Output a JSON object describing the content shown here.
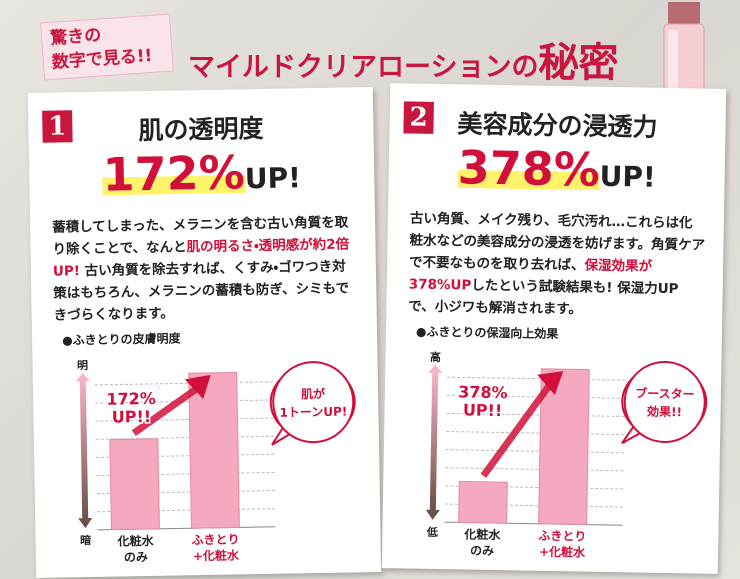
{
  "header": {
    "tag": [
      "驚きの",
      "数字で見る!!"
    ],
    "title": "マイルドクリアローションの",
    "title_emphasis": "秘密"
  },
  "panels": [
    {
      "number": "1",
      "heading": "肌の透明度",
      "big_figure": "172%",
      "big_suffix": "UP!",
      "body": [
        {
          "text": "蓄積してしまった、メラニンを含む古い角質を取り除くことで、なんと",
          "em": false
        },
        {
          "text": "肌の明るさ・透明感が約2倍UP!",
          "em": true
        },
        {
          "text": " 古い角質を除去すれば、くすみ・ゴワつき対策はもちろん、メラニンの蓄積も防ぎ、シミもできづらくなります。",
          "em": false
        }
      ],
      "chart": {
        "type": "bar",
        "title": "●ふきとりの皮膚明度",
        "axis_top": "明",
        "axis_bottom": "暗",
        "categories": [
          [
            "化粧水",
            "のみ"
          ],
          [
            "ふきとり",
            "+化粧水"
          ]
        ],
        "values": [
          100,
          172
        ],
        "color": "#f4a9be",
        "annotation": [
          "172%",
          "UP!!"
        ],
        "bubble": [
          "肌が",
          "1トーンUP!"
        ]
      }
    },
    {
      "number": "2",
      "heading": "美容成分の浸透力",
      "big_figure": "378%",
      "big_suffix": "UP!",
      "body": [
        {
          "text": "古い角質、メイク残り、毛穴汚れ…これらは化粧水などの美容成分の浸透を妨げます。角質ケアで不要なものを取り去れば、",
          "em": false
        },
        {
          "text": "保湿効果が378%UP",
          "em": true
        },
        {
          "text": "したという試験結果も! 保湿力UPで、小ジワも解消されます。",
          "em": false
        }
      ],
      "chart": {
        "type": "bar",
        "title": "●ふきとりの保湿向上効果",
        "axis_top": "高",
        "axis_bottom": "低",
        "categories": [
          [
            "化粧水",
            "のみ"
          ],
          [
            "ふきとり",
            "+化粧水"
          ]
        ],
        "values": [
          100,
          378
        ],
        "color": "#f4a9be",
        "annotation": [
          "378%",
          "UP!!"
        ],
        "bubble": [
          "ブースター",
          "効果!!"
        ]
      }
    }
  ]
}
